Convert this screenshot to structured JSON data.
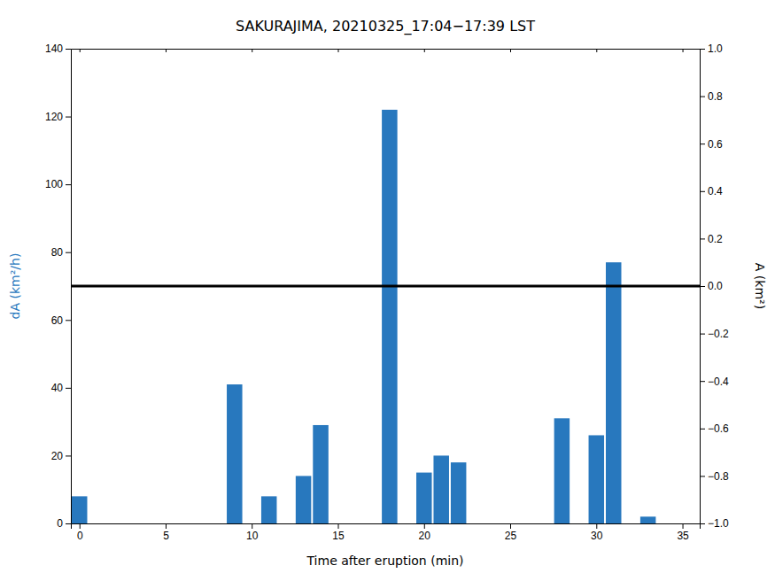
{
  "chart_data": {
    "type": "bar",
    "title": "SAKURAJIMA, 20210325_17:04−17:39 LST",
    "x": [
      0,
      9,
      11,
      13,
      14,
      18,
      20,
      21,
      22,
      28,
      30,
      31,
      33
    ],
    "values": [
      8,
      41,
      8,
      14,
      29,
      122,
      15,
      20,
      18,
      31,
      26,
      77,
      2
    ],
    "color": "#2878BE",
    "hline": {
      "y": 70,
      "color": "black"
    },
    "xlim": [
      -0.5,
      36
    ],
    "xticks": [
      0,
      5,
      10,
      15,
      20,
      25,
      30,
      35
    ],
    "ylim": [
      0,
      140
    ],
    "yticks": [
      0,
      20,
      40,
      60,
      80,
      100,
      120,
      140
    ],
    "y2lim": [
      -1,
      1
    ],
    "y2ticks": [
      {
        "value": -1.0,
        "label": "−1.0"
      },
      {
        "value": -0.8,
        "label": "−0.8"
      },
      {
        "value": -0.6,
        "label": "−0.6"
      },
      {
        "value": -0.4,
        "label": "−0.4"
      },
      {
        "value": -0.2,
        "label": "−0.2"
      },
      {
        "value": 0.0,
        "label": "0.0"
      },
      {
        "value": 0.2,
        "label": "0.2"
      },
      {
        "value": 0.4,
        "label": "0.4"
      },
      {
        "value": 0.6,
        "label": "0.6"
      },
      {
        "value": 0.8,
        "label": "0.8"
      },
      {
        "value": 1.0,
        "label": "1.0"
      }
    ],
    "xlabel": "Time after eruption (min)",
    "ylabel": "dA (km²/h)",
    "y2label": "A (km²)"
  }
}
